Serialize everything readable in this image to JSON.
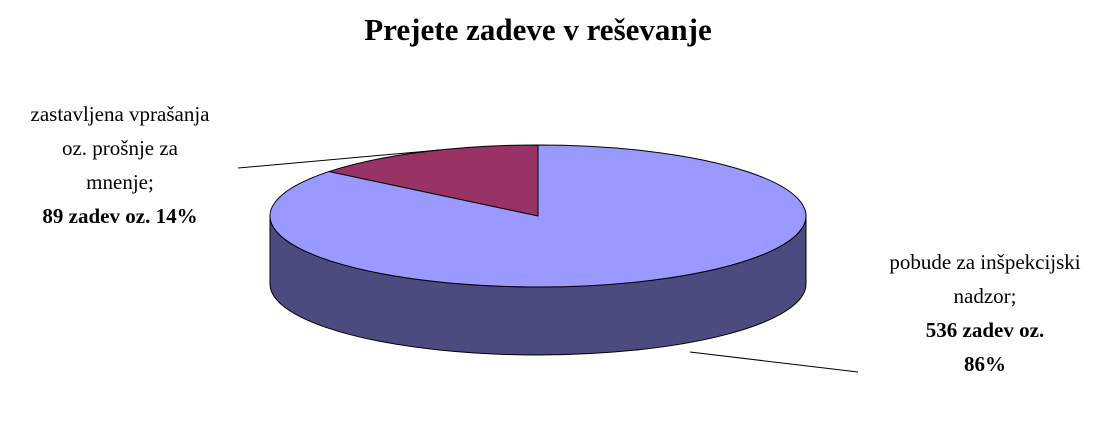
{
  "chart_data": {
    "type": "pie",
    "title": "Prejete zadeve v reševanje",
    "categories": [
      "zastavljena vprašanja oz. prošnje za mnenje;",
      "pobude za inšpekcijski nadzor;"
    ],
    "values": [
      89,
      536
    ],
    "value_labels": [
      "89 zadev oz. 14%",
      "536 zadev oz. 86%"
    ],
    "colors": [
      "#993366",
      "#9999ff"
    ],
    "side_colors": [
      "#4d1a33",
      "#4b4b80"
    ]
  }
}
